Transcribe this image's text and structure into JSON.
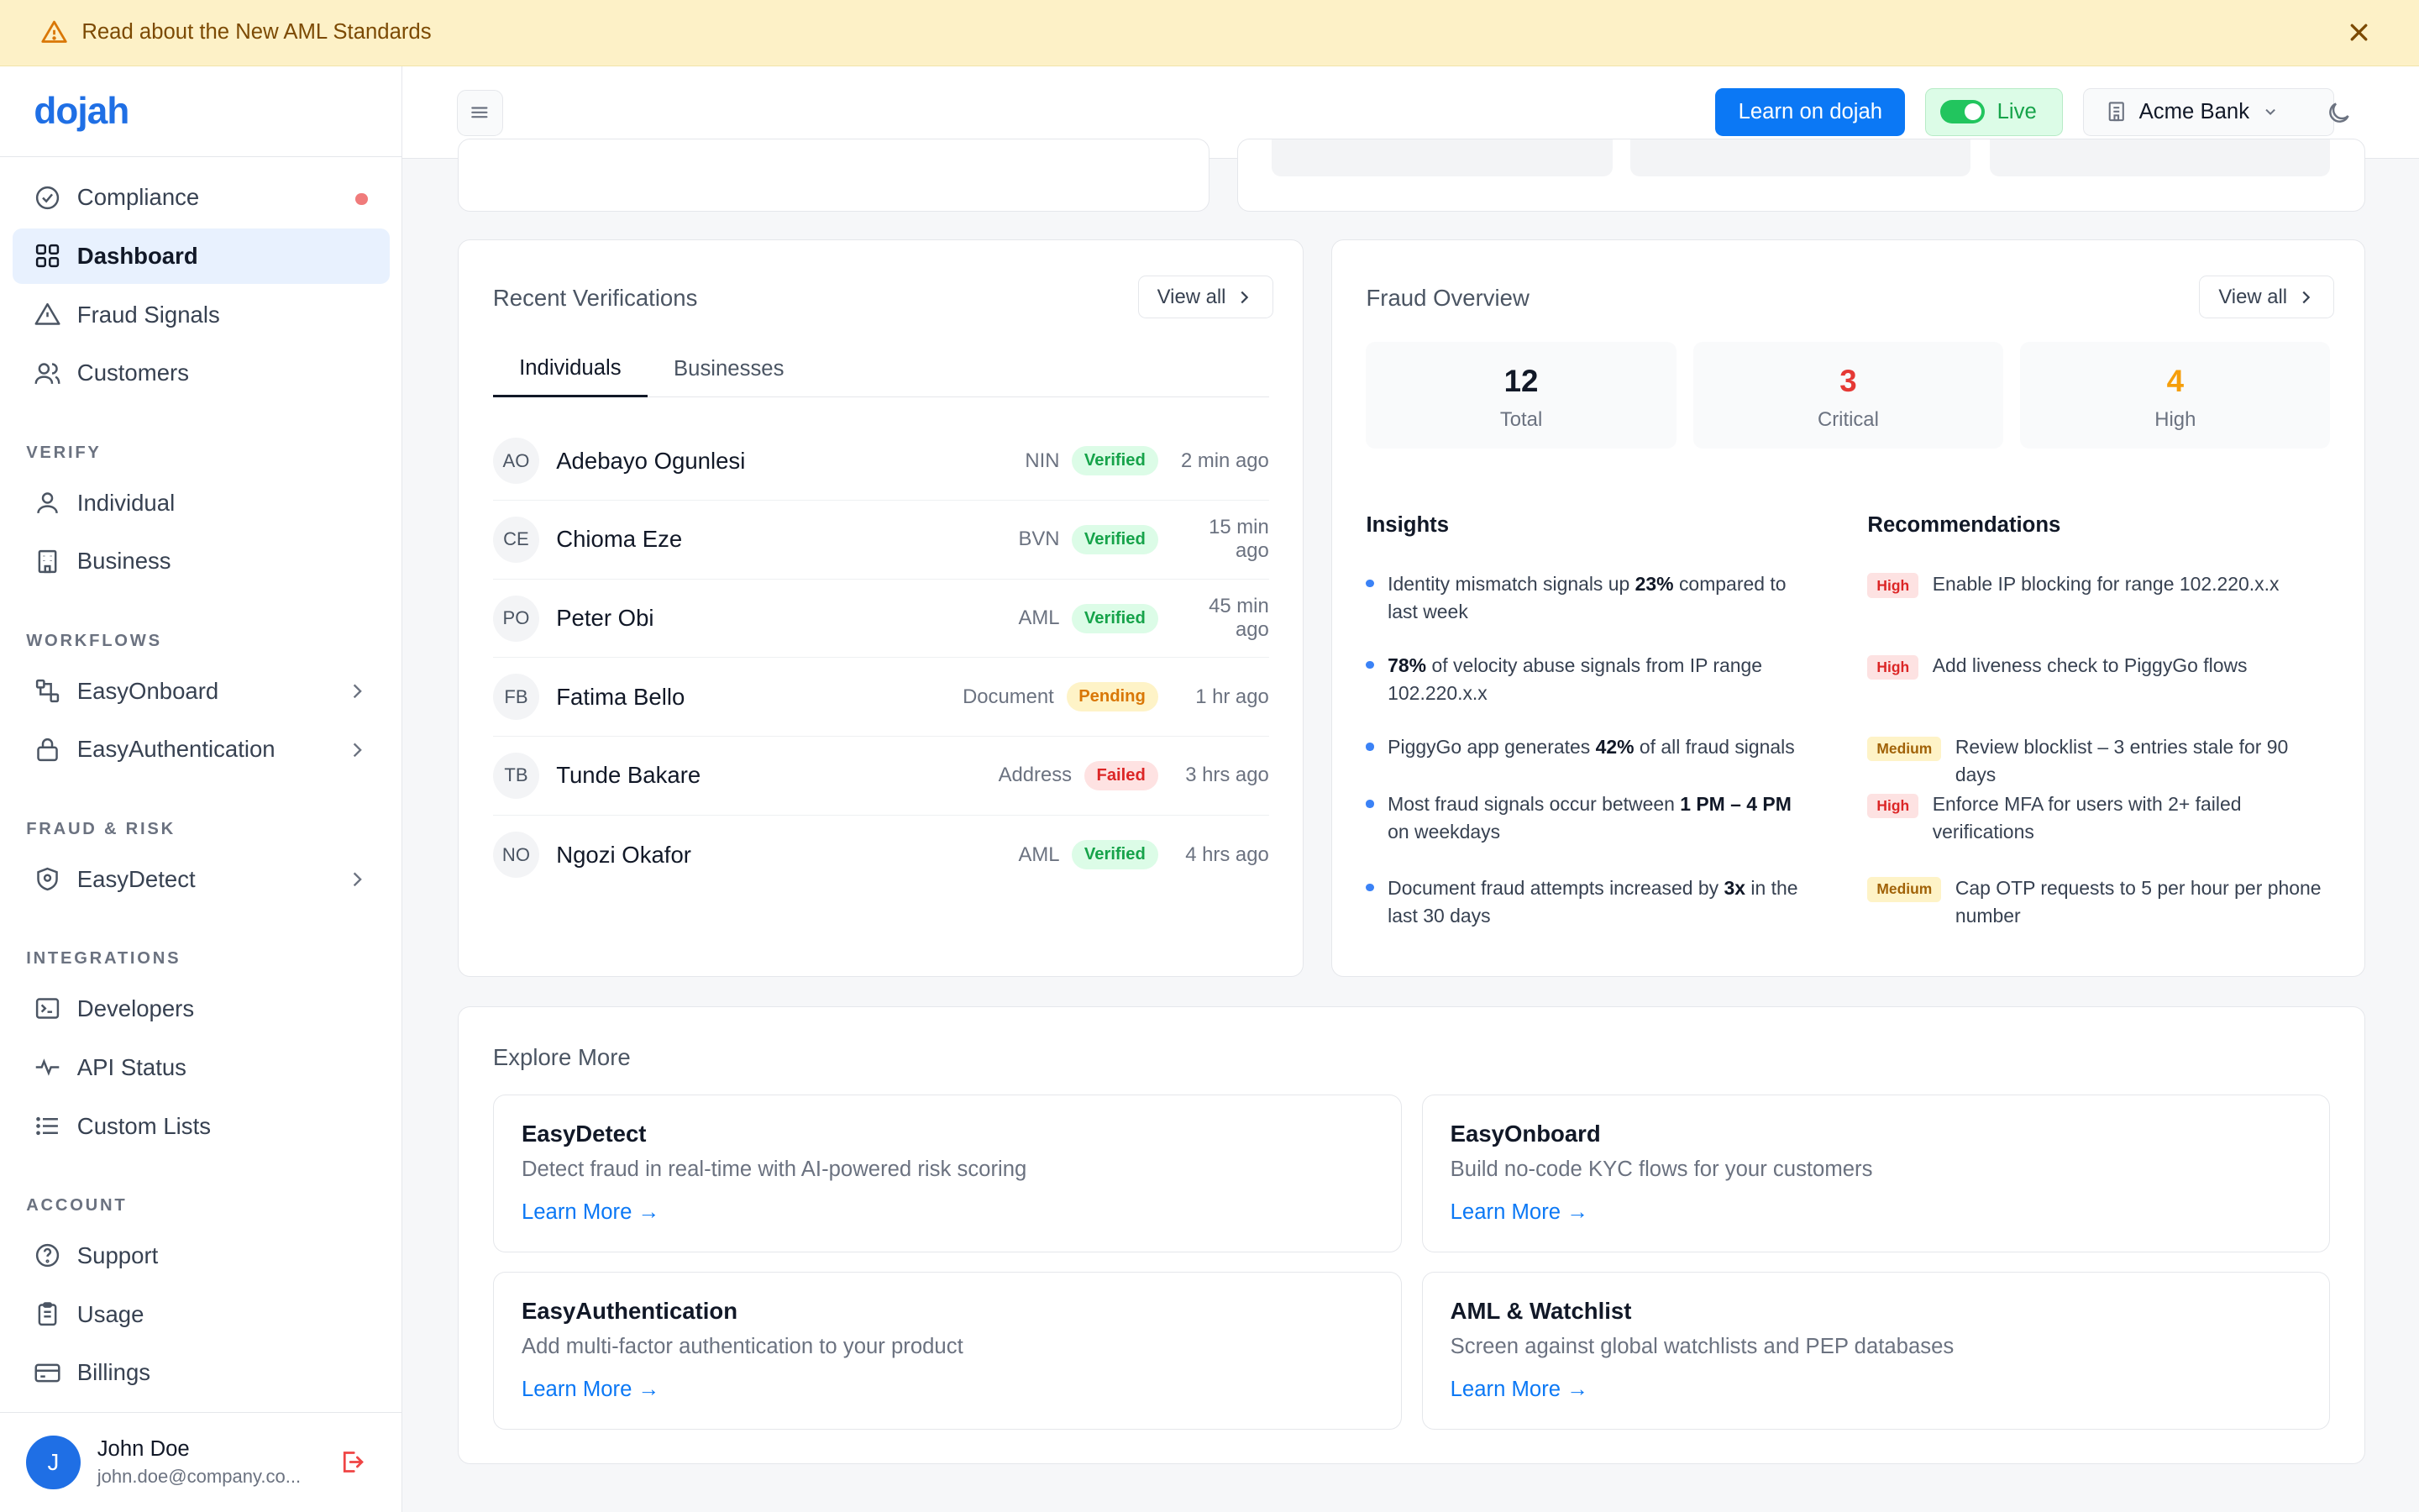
{
  "banner": {
    "text": "Read about the New AML Standards"
  },
  "brand": {
    "logo": "dojah"
  },
  "sidebar": {
    "top_items": [
      {
        "label": "Compliance"
      },
      {
        "label": "Dashboard"
      },
      {
        "label": "Fraud Signals"
      },
      {
        "label": "Customers"
      }
    ],
    "sections": {
      "verify": "VERIFY",
      "workflows": "WORKFLOWS",
      "fraud": "FRAUD & RISK",
      "integrations": "INTEGRATIONS",
      "account": "ACCOUNT"
    },
    "verify_items": [
      {
        "label": "Individual"
      },
      {
        "label": "Business"
      }
    ],
    "workflow_items": [
      {
        "label": "EasyOnboard"
      },
      {
        "label": "EasyAuthentication"
      }
    ],
    "fraud_items": [
      {
        "label": "EasyDetect"
      }
    ],
    "integration_items": [
      {
        "label": "Developers"
      },
      {
        "label": "API Status"
      },
      {
        "label": "Custom Lists"
      }
    ],
    "account_items": [
      {
        "label": "Support"
      },
      {
        "label": "Usage"
      },
      {
        "label": "Billings"
      }
    ]
  },
  "user": {
    "initial": "J",
    "name": "John Doe",
    "email": "john.doe@company.co..."
  },
  "topbar": {
    "learn_label": "Learn on dojah",
    "live_label": "Live",
    "org_name": "Acme Bank"
  },
  "verifications": {
    "title": "Recent Verifications",
    "view_all": "View all",
    "tabs": [
      "Individuals",
      "Businesses"
    ],
    "rows": [
      {
        "initials": "AO",
        "name": "Adebayo Ogunlesi",
        "type": "NIN",
        "status": "Verified",
        "time": "2 min ago"
      },
      {
        "initials": "CE",
        "name": "Chioma Eze",
        "type": "BVN",
        "status": "Verified",
        "time": "15 min ago"
      },
      {
        "initials": "PO",
        "name": "Peter Obi",
        "type": "AML",
        "status": "Verified",
        "time": "45 min ago"
      },
      {
        "initials": "FB",
        "name": "Fatima Bello",
        "type": "Document",
        "status": "Pending",
        "time": "1 hr ago"
      },
      {
        "initials": "TB",
        "name": "Tunde Bakare",
        "type": "Address",
        "status": "Failed",
        "time": "3 hrs ago"
      },
      {
        "initials": "NO",
        "name": "Ngozi Okafor",
        "type": "AML",
        "status": "Verified",
        "time": "4 hrs ago"
      }
    ]
  },
  "fraud": {
    "title": "Fraud Overview",
    "view_all": "View all",
    "stats": [
      {
        "value": "12",
        "label": "Total",
        "color": "#111827"
      },
      {
        "value": "3",
        "label": "Critical",
        "color": "#e53935"
      },
      {
        "value": "4",
        "label": "High",
        "color": "#f59e0b"
      }
    ],
    "insights_title": "Insights",
    "insights": [
      {
        "pre": "Identity mismatch signals up ",
        "bold": "23%",
        "post": " compared to last week"
      },
      {
        "pre": "",
        "bold": "78%",
        "post": " of velocity abuse signals from IP range 102.220.x.x"
      },
      {
        "pre": "PiggyGo app generates ",
        "bold": "42%",
        "post": " of all fraud signals"
      },
      {
        "pre": "Most fraud signals occur between ",
        "bold": "1 PM – 4 PM",
        "post": " on weekdays"
      },
      {
        "pre": "Document fraud attempts increased by ",
        "bold": "3x",
        "post": " in the last 30 days"
      }
    ],
    "recommendations_title": "Recommendations",
    "recommendations": [
      {
        "level": "High",
        "text": "Enable IP blocking for range 102.220.x.x"
      },
      {
        "level": "High",
        "text": "Add liveness check to PiggyGo flows"
      },
      {
        "level": "Medium",
        "text": "Review blocklist – 3 entries stale for 90 days"
      },
      {
        "level": "High",
        "text": "Enforce MFA for users with 2+ failed verifications"
      },
      {
        "level": "Medium",
        "text": "Cap OTP requests to 5 per hour per phone number"
      }
    ]
  },
  "explore": {
    "title": "Explore More",
    "learn_more": "Learn More →",
    "tiles": [
      {
        "title": "EasyDetect",
        "desc": "Detect fraud in real-time with AI-powered risk scoring"
      },
      {
        "title": "EasyOnboard",
        "desc": "Build no-code KYC flows for your customers"
      },
      {
        "title": "EasyAuthentication",
        "desc": "Add multi-factor authentication to your product"
      },
      {
        "title": "AML & Watchlist",
        "desc": "Screen against global watchlists and PEP databases"
      }
    ]
  }
}
